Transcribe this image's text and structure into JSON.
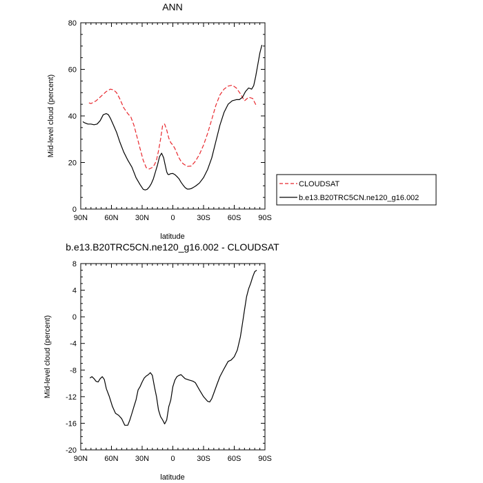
{
  "chart_data": [
    {
      "type": "line",
      "title": "ANN",
      "xlabel": "latitude",
      "ylabel": "Mid-level cloud (percent)",
      "xlim": [
        90,
        -90
      ],
      "ylim": [
        0,
        80
      ],
      "x_ticks": [
        {
          "value": 90,
          "label": "90N"
        },
        {
          "value": 60,
          "label": "60N"
        },
        {
          "value": 30,
          "label": "30N"
        },
        {
          "value": 0,
          "label": "0"
        },
        {
          "value": -30,
          "label": "30S"
        },
        {
          "value": -60,
          "label": "60S"
        },
        {
          "value": -90,
          "label": "90S"
        }
      ],
      "y_ticks": [
        {
          "value": 0,
          "label": "0"
        },
        {
          "value": 20,
          "label": "20"
        },
        {
          "value": 40,
          "label": "40"
        },
        {
          "value": 60,
          "label": "60"
        },
        {
          "value": 80,
          "label": "80"
        }
      ],
      "legend_position": "right",
      "series": [
        {
          "name": "CLOUDSAT",
          "color": "#e8262c",
          "dash": "dashed",
          "x": [
            82,
            80,
            75,
            70,
            65,
            61,
            58,
            55,
            52,
            48,
            44,
            41,
            38,
            35,
            32,
            29,
            26,
            23,
            20,
            18,
            16,
            14,
            12,
            10,
            8,
            6,
            4,
            2,
            0,
            -2,
            -4,
            -6,
            -8,
            -10,
            -14,
            -18,
            -22,
            -26,
            -30,
            -34,
            -38,
            -42,
            -46,
            -50,
            -54,
            -58,
            -62,
            -66,
            -70,
            -74,
            -78,
            -82
          ],
          "y": [
            45.6,
            45.3,
            46.5,
            48.5,
            50.5,
            51.5,
            51.2,
            50.0,
            47.5,
            43.5,
            41.0,
            39.5,
            36.0,
            31.0,
            26.0,
            21.0,
            17.8,
            17.2,
            17.9,
            19.0,
            21.0,
            25.0,
            30.0,
            36.0,
            36.5,
            34.0,
            30.5,
            28.5,
            27.5,
            26.0,
            24.0,
            22.0,
            20.5,
            19.5,
            18.3,
            18.5,
            20.5,
            23.5,
            27.5,
            32.5,
            38.5,
            44.5,
            49.0,
            51.5,
            52.8,
            53.2,
            52.0,
            49.5,
            46.5,
            48.0,
            47.5,
            44.0
          ]
        },
        {
          "name": "b.e13.B20TRC5CN.ne120_g16.002",
          "color": "#000000",
          "dash": "solid",
          "x": [
            88,
            86,
            83,
            80,
            77,
            74,
            71,
            68,
            65,
            63,
            61,
            58,
            55,
            52,
            48,
            44,
            40,
            36,
            32,
            29,
            27,
            25,
            23,
            21,
            19,
            17,
            15,
            13,
            11,
            9,
            8,
            7,
            6,
            5,
            4,
            2,
            0,
            -2,
            -4,
            -6,
            -8,
            -10,
            -12,
            -14,
            -16,
            -18,
            -20,
            -22,
            -24,
            -26,
            -30,
            -34,
            -38,
            -42,
            -46,
            -50,
            -54,
            -58,
            -62,
            -65,
            -68,
            -71,
            -74,
            -77,
            -79,
            -81,
            -83,
            -85,
            -87
          ],
          "y": [
            37.5,
            37.0,
            36.5,
            36.5,
            36.2,
            36.5,
            38.0,
            40.5,
            41.0,
            40.5,
            39.0,
            36.0,
            33.0,
            29.0,
            24.5,
            21.0,
            18.0,
            13.5,
            10.5,
            8.5,
            8.2,
            8.5,
            9.5,
            11.0,
            13.0,
            16.0,
            19.0,
            22.5,
            24.0,
            22.0,
            20.0,
            18.0,
            16.0,
            15.0,
            14.8,
            15.2,
            15.3,
            14.8,
            14.0,
            13.0,
            11.5,
            10.3,
            9.2,
            8.6,
            8.6,
            8.8,
            9.3,
            9.8,
            10.5,
            11.2,
            13.5,
            17.0,
            22.0,
            29.0,
            36.0,
            41.5,
            45.0,
            46.5,
            47.0,
            47.0,
            48.0,
            50.5,
            52.0,
            51.5,
            53.0,
            57.0,
            62.0,
            67.0,
            70.5
          ]
        }
      ]
    },
    {
      "type": "line",
      "title": "b.e13.B20TRC5CN.ne120_g16.002 - CLOUDSAT",
      "xlabel": "latitude",
      "ylabel": "Mid-level cloud (percent)",
      "xlim": [
        90,
        -90
      ],
      "ylim": [
        -20,
        8
      ],
      "x_ticks": [
        {
          "value": 90,
          "label": "90N"
        },
        {
          "value": 60,
          "label": "60N"
        },
        {
          "value": 30,
          "label": "30N"
        },
        {
          "value": 0,
          "label": "0"
        },
        {
          "value": -30,
          "label": "30S"
        },
        {
          "value": -60,
          "label": "60S"
        },
        {
          "value": -90,
          "label": "90S"
        }
      ],
      "y_ticks": [
        {
          "value": -20,
          "label": "-20"
        },
        {
          "value": -16,
          "label": "-16"
        },
        {
          "value": -12,
          "label": "-12"
        },
        {
          "value": -8,
          "label": "-8"
        },
        {
          "value": -4,
          "label": "-4"
        },
        {
          "value": 0,
          "label": "0"
        },
        {
          "value": 4,
          "label": "4"
        },
        {
          "value": 8,
          "label": "8"
        }
      ],
      "series": [
        {
          "color": "#000000",
          "dash": "solid",
          "x": [
            81,
            79,
            77,
            75,
            73,
            71,
            69,
            67,
            65,
            62,
            59,
            56,
            53,
            50,
            47,
            44,
            42,
            40,
            38,
            36,
            34,
            32,
            30,
            28,
            26,
            24,
            22,
            20,
            18,
            16,
            14,
            12,
            10,
            8,
            6,
            5,
            4,
            3,
            2,
            1,
            0,
            -2,
            -4,
            -6,
            -8,
            -10,
            -12,
            -14,
            -16,
            -18,
            -20,
            -22,
            -26,
            -30,
            -34,
            -36,
            -38,
            -40,
            -43,
            -46,
            -50,
            -54,
            -57,
            -60,
            -63,
            -66,
            -68,
            -70,
            -72,
            -74,
            -76,
            -78,
            -80,
            -82
          ],
          "y": [
            -9.2,
            -9.0,
            -9.3,
            -9.7,
            -9.8,
            -9.3,
            -9.0,
            -9.4,
            -10.8,
            -12.0,
            -13.5,
            -14.5,
            -14.8,
            -15.3,
            -16.3,
            -16.3,
            -15.5,
            -14.5,
            -13.5,
            -12.5,
            -11.0,
            -10.5,
            -9.8,
            -9.2,
            -8.9,
            -8.7,
            -8.4,
            -8.8,
            -10.5,
            -12.0,
            -14.0,
            -15.0,
            -15.5,
            -16.1,
            -15.5,
            -14.5,
            -13.5,
            -13.0,
            -12.5,
            -11.5,
            -10.5,
            -9.5,
            -9.0,
            -8.8,
            -8.7,
            -9.0,
            -9.3,
            -9.4,
            -9.5,
            -9.6,
            -9.7,
            -9.9,
            -11.0,
            -12.0,
            -12.7,
            -12.8,
            -12.3,
            -11.5,
            -10.2,
            -9.0,
            -7.8,
            -6.7,
            -6.5,
            -6.0,
            -5.0,
            -3.0,
            -1.0,
            1.0,
            3.0,
            4.2,
            5.0,
            6.0,
            6.8,
            7.0
          ]
        }
      ]
    }
  ]
}
